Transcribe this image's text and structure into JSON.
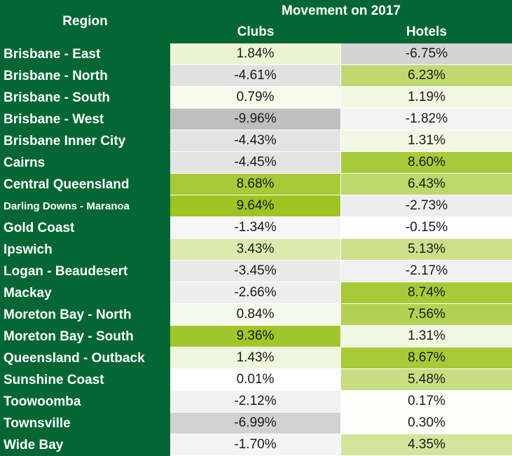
{
  "chart_data": {
    "type": "table",
    "header": {
      "region_label": "Region",
      "group_label": "Movement on 2017",
      "columns": [
        "Clubs",
        "Hotels"
      ]
    },
    "rows": [
      {
        "region": "Brisbane - East",
        "clubs": 1.84,
        "hotels": -6.75,
        "clubs_text": "1.84%",
        "hotels_text": "-6.75%"
      },
      {
        "region": "Brisbane - North",
        "clubs": -4.61,
        "hotels": 6.23,
        "clubs_text": "-4.61%",
        "hotels_text": "6.23%"
      },
      {
        "region": "Brisbane - South",
        "clubs": 0.79,
        "hotels": 1.19,
        "clubs_text": "0.79%",
        "hotels_text": "1.19%"
      },
      {
        "region": "Brisbane - West",
        "clubs": -9.96,
        "hotels": -1.82,
        "clubs_text": "-9.96%",
        "hotels_text": "-1.82%"
      },
      {
        "region": "Brisbane Inner City",
        "clubs": -4.43,
        "hotels": 1.31,
        "clubs_text": "-4.43%",
        "hotels_text": "1.31%"
      },
      {
        "region": "Cairns",
        "clubs": -4.45,
        "hotels": 8.6,
        "clubs_text": "-4.45%",
        "hotels_text": "8.60%"
      },
      {
        "region": "Central Queensland",
        "clubs": 8.68,
        "hotels": 6.43,
        "clubs_text": "8.68%",
        "hotels_text": "6.43%"
      },
      {
        "region": "Darling Downs - Maranoa",
        "clubs": 9.64,
        "hotels": -2.73,
        "clubs_text": "9.64%",
        "hotels_text": "-2.73%",
        "small": true
      },
      {
        "region": "Gold Coast",
        "clubs": -1.34,
        "hotels": -0.15,
        "clubs_text": "-1.34%",
        "hotels_text": "-0.15%"
      },
      {
        "region": "Ipswich",
        "clubs": 3.43,
        "hotels": 5.13,
        "clubs_text": "3.43%",
        "hotels_text": "5.13%"
      },
      {
        "region": "Logan - Beaudesert",
        "clubs": -3.45,
        "hotels": -2.17,
        "clubs_text": "-3.45%",
        "hotels_text": "-2.17%"
      },
      {
        "region": "Mackay",
        "clubs": -2.66,
        "hotels": 8.74,
        "clubs_text": "-2.66%",
        "hotels_text": "8.74%"
      },
      {
        "region": "Moreton Bay - North",
        "clubs": 0.84,
        "hotels": 7.56,
        "clubs_text": "0.84%",
        "hotels_text": "7.56%"
      },
      {
        "region": "Moreton Bay - South",
        "clubs": 9.36,
        "hotels": 1.31,
        "clubs_text": "9.36%",
        "hotels_text": "1.31%"
      },
      {
        "region": "Queensland - Outback",
        "clubs": 1.43,
        "hotels": 8.67,
        "clubs_text": "1.43%",
        "hotels_text": "8.67%"
      },
      {
        "region": "Sunshine Coast",
        "clubs": 0.01,
        "hotels": 5.48,
        "clubs_text": "0.01%",
        "hotels_text": "5.48%"
      },
      {
        "region": "Toowoomba",
        "clubs": -2.12,
        "hotels": 0.17,
        "clubs_text": "-2.12%",
        "hotels_text": "0.17%"
      },
      {
        "region": "Townsville",
        "clubs": -6.99,
        "hotels": 0.3,
        "clubs_text": "-6.99%",
        "hotels_text": "0.30%"
      },
      {
        "region": "Wide Bay",
        "clubs": -1.7,
        "hotels": 4.35,
        "clubs_text": "-1.70%",
        "hotels_text": "4.35%"
      }
    ],
    "color_scale": {
      "negative": "#bfbfbf",
      "neutral": "#ffffff",
      "positive": "#99c21a",
      "min": -10,
      "max": 10
    },
    "colors": {
      "header_bg": "#046634",
      "header_text": "#ffffff"
    }
  }
}
